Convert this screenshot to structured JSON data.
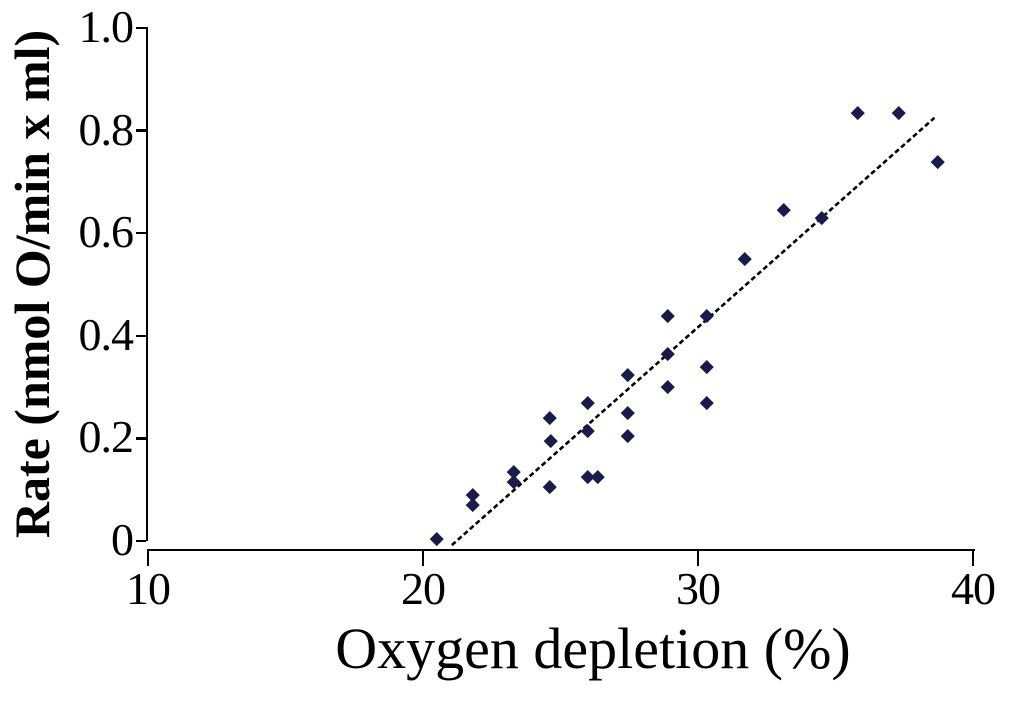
{
  "chart_data": {
    "type": "scatter",
    "title": "",
    "xlabel": "Oxygen depletion (%)",
    "ylabel": "Rate (nmol O/min x ml)",
    "xlim": [
      10,
      40
    ],
    "ylim": [
      0,
      1.0
    ],
    "grid": false,
    "legend": "none",
    "marker": "diamond",
    "marker_color": "#1b1b4a",
    "axis_color": "#000000",
    "trendline_color": "#000000",
    "x_ticks": [
      {
        "value": 10,
        "label": "10"
      },
      {
        "value": 20,
        "label": "20"
      },
      {
        "value": 30,
        "label": "30"
      },
      {
        "value": 40,
        "label": "40"
      }
    ],
    "y_ticks": [
      {
        "value": 0.0,
        "label": "0"
      },
      {
        "value": 0.2,
        "label": "0.2"
      },
      {
        "value": 0.4,
        "label": "0.4"
      },
      {
        "value": 0.6,
        "label": "0.6"
      },
      {
        "value": 0.8,
        "label": "0.8"
      },
      {
        "value": 1.0,
        "label": "1.0"
      }
    ],
    "points": [
      [
        20.5,
        0.005
      ],
      [
        21.8,
        0.09
      ],
      [
        21.8,
        0.07
      ],
      [
        23.3,
        0.135
      ],
      [
        23.3,
        0.115
      ],
      [
        24.6,
        0.24
      ],
      [
        24.65,
        0.195
      ],
      [
        24.6,
        0.105
      ],
      [
        26.0,
        0.27
      ],
      [
        26.0,
        0.215
      ],
      [
        26.0,
        0.125
      ],
      [
        26.35,
        0.125
      ],
      [
        27.45,
        0.325
      ],
      [
        27.45,
        0.25
      ],
      [
        27.45,
        0.205
      ],
      [
        28.9,
        0.44
      ],
      [
        28.9,
        0.365
      ],
      [
        28.9,
        0.3
      ],
      [
        30.3,
        0.44
      ],
      [
        30.3,
        0.34
      ],
      [
        30.3,
        0.27
      ],
      [
        31.7,
        0.55
      ],
      [
        33.1,
        0.645
      ],
      [
        34.5,
        0.63
      ],
      [
        35.8,
        0.835
      ],
      [
        37.3,
        0.835
      ],
      [
        38.7,
        0.74
      ]
    ],
    "trendline": {
      "x1": 21.05,
      "y1": -0.008,
      "x2": 38.6,
      "y2": 0.825
    }
  }
}
